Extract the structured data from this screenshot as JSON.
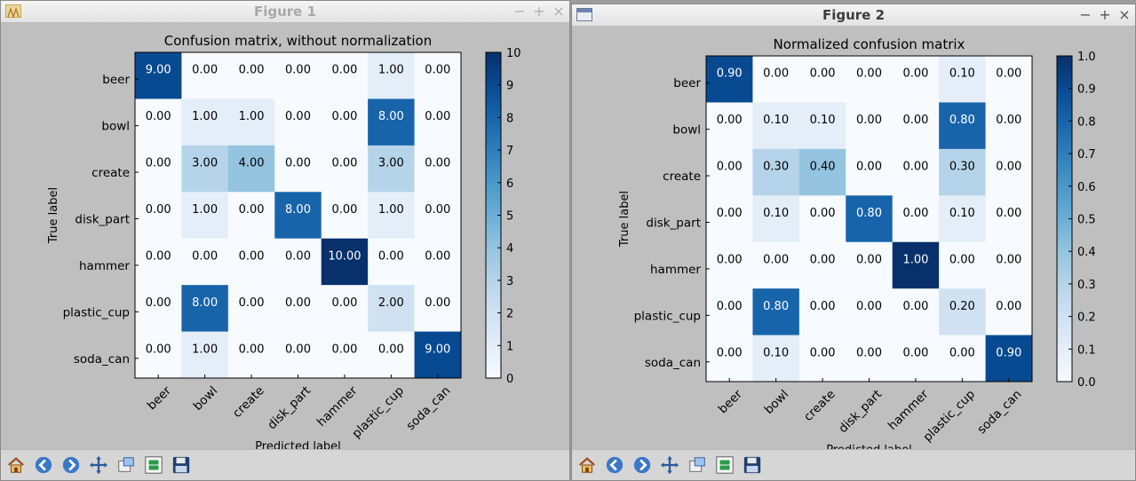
{
  "fig1": {
    "title": "Figure 1",
    "controls": [
      "−",
      "+",
      "×"
    ],
    "chart_data": {
      "type": "heatmap",
      "title": "Confusion matrix, without normalization",
      "xlabel": "Predicted label",
      "ylabel": "True label",
      "categories": [
        "beer",
        "bowl",
        "create",
        "disk_part",
        "hammer",
        "plastic_cup",
        "soda_can"
      ],
      "values": [
        [
          9,
          0,
          0,
          0,
          0,
          1,
          0
        ],
        [
          0,
          1,
          1,
          0,
          0,
          8,
          0
        ],
        [
          0,
          3,
          4,
          0,
          0,
          3,
          0
        ],
        [
          0,
          1,
          0,
          8,
          0,
          1,
          0
        ],
        [
          0,
          0,
          0,
          0,
          10,
          0,
          0
        ],
        [
          0,
          8,
          0,
          0,
          0,
          2,
          0
        ],
        [
          0,
          1,
          0,
          0,
          0,
          0,
          9
        ]
      ],
      "cell_labels": [
        [
          "9.00",
          "0.00",
          "0.00",
          "0.00",
          "0.00",
          "1.00",
          "0.00"
        ],
        [
          "0.00",
          "1.00",
          "1.00",
          "0.00",
          "0.00",
          "8.00",
          "0.00"
        ],
        [
          "0.00",
          "3.00",
          "4.00",
          "0.00",
          "0.00",
          "3.00",
          "0.00"
        ],
        [
          "0.00",
          "1.00",
          "0.00",
          "8.00",
          "0.00",
          "1.00",
          "0.00"
        ],
        [
          "0.00",
          "0.00",
          "0.00",
          "0.00",
          "10.00",
          "0.00",
          "0.00"
        ],
        [
          "0.00",
          "8.00",
          "0.00",
          "0.00",
          "0.00",
          "2.00",
          "0.00"
        ],
        [
          "0.00",
          "1.00",
          "0.00",
          "0.00",
          "0.00",
          "0.00",
          "9.00"
        ]
      ],
      "vmax": 10,
      "colorbar_ticks": [
        "0",
        "1",
        "2",
        "3",
        "4",
        "5",
        "6",
        "7",
        "8",
        "9",
        "10"
      ],
      "colormap": "Blues"
    }
  },
  "fig2": {
    "title": "Figure 2",
    "controls": [
      "−",
      "+",
      "×"
    ],
    "chart_data": {
      "type": "heatmap",
      "title": "Normalized confusion matrix",
      "xlabel": "Predicted label",
      "ylabel": "True label",
      "categories": [
        "beer",
        "bowl",
        "create",
        "disk_part",
        "hammer",
        "plastic_cup",
        "soda_can"
      ],
      "values": [
        [
          0.9,
          0,
          0,
          0,
          0,
          0.1,
          0
        ],
        [
          0,
          0.1,
          0.1,
          0,
          0,
          0.8,
          0
        ],
        [
          0,
          0.3,
          0.4,
          0,
          0,
          0.3,
          0
        ],
        [
          0,
          0.1,
          0,
          0.8,
          0,
          0.1,
          0
        ],
        [
          0,
          0,
          0,
          0,
          1.0,
          0,
          0
        ],
        [
          0,
          0.8,
          0,
          0,
          0,
          0.2,
          0
        ],
        [
          0,
          0.1,
          0,
          0,
          0,
          0,
          0.9
        ]
      ],
      "cell_labels": [
        [
          "0.90",
          "0.00",
          "0.00",
          "0.00",
          "0.00",
          "0.10",
          "0.00"
        ],
        [
          "0.00",
          "0.10",
          "0.10",
          "0.00",
          "0.00",
          "0.80",
          "0.00"
        ],
        [
          "0.00",
          "0.30",
          "0.40",
          "0.00",
          "0.00",
          "0.30",
          "0.00"
        ],
        [
          "0.00",
          "0.10",
          "0.00",
          "0.80",
          "0.00",
          "0.10",
          "0.00"
        ],
        [
          "0.00",
          "0.00",
          "0.00",
          "0.00",
          "1.00",
          "0.00",
          "0.00"
        ],
        [
          "0.00",
          "0.80",
          "0.00",
          "0.00",
          "0.00",
          "0.20",
          "0.00"
        ],
        [
          "0.00",
          "0.10",
          "0.00",
          "0.00",
          "0.00",
          "0.00",
          "0.90"
        ]
      ],
      "vmax": 1.0,
      "colorbar_ticks": [
        "0.0",
        "0.1",
        "0.2",
        "0.3",
        "0.4",
        "0.5",
        "0.6",
        "0.7",
        "0.8",
        "0.9",
        "1.0"
      ],
      "colormap": "Blues"
    }
  },
  "toolbar": [
    "home-icon",
    "back-arrow-icon",
    "forward-arrow-icon",
    "pan-icon",
    "zoom-icon",
    "subplots-icon",
    "save-icon"
  ],
  "colors": {
    "title_inactive": "#a8a8a8",
    "title_active": "#3c3c3c"
  }
}
